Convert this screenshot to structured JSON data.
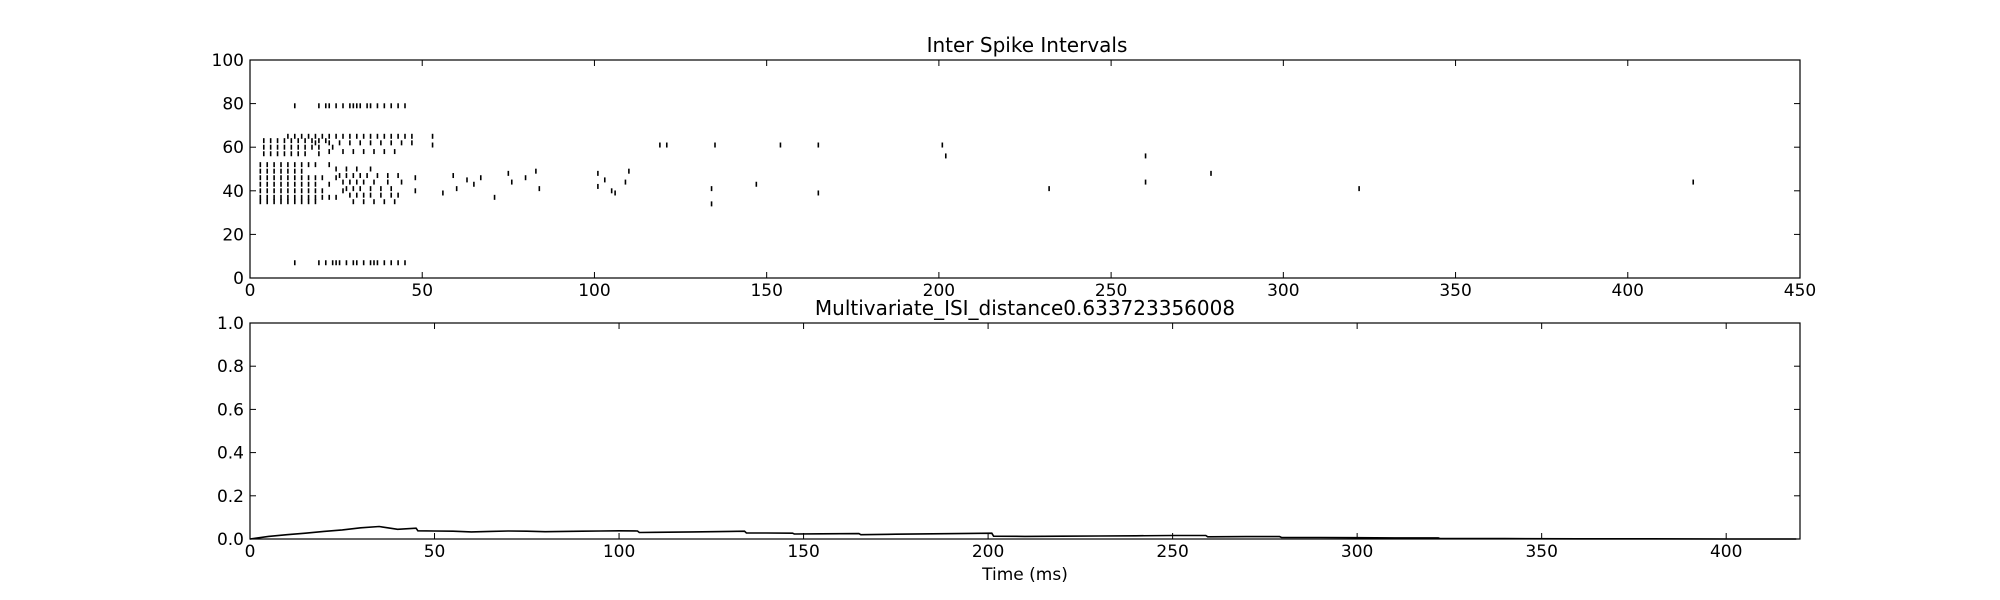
{
  "chart_data": [
    {
      "type": "scatter",
      "title": "Inter Spike Intervals",
      "xlabel": "",
      "ylabel": "",
      "xlim": [
        0,
        450
      ],
      "ylim": [
        0,
        100
      ],
      "xticks": [
        "0",
        "50",
        "100",
        "150",
        "200",
        "250",
        "300",
        "350",
        "400",
        "450"
      ],
      "yticks": [
        "0",
        "20",
        "40",
        "60",
        "80",
        "100"
      ],
      "grid": false,
      "marker": "vertical tick",
      "series": [
        {
          "points": [
            [
              13,
              7
            ],
            [
              20,
              7
            ],
            [
              22,
              7
            ],
            [
              24,
              7
            ],
            [
              25,
              7
            ],
            [
              26,
              7
            ],
            [
              28,
              7
            ],
            [
              30,
              7
            ],
            [
              31,
              7
            ],
            [
              33,
              7
            ],
            [
              35,
              7
            ],
            [
              36,
              7
            ],
            [
              37,
              7
            ],
            [
              39,
              7
            ],
            [
              41,
              7
            ],
            [
              43,
              7
            ],
            [
              45,
              7
            ],
            [
              13,
              79
            ],
            [
              20,
              79
            ],
            [
              22,
              79
            ],
            [
              23,
              79
            ],
            [
              25,
              79
            ],
            [
              27,
              79
            ],
            [
              29,
              79
            ],
            [
              30,
              79
            ],
            [
              31,
              79
            ],
            [
              32,
              79
            ],
            [
              34,
              79
            ],
            [
              35,
              79
            ],
            [
              37,
              79
            ],
            [
              39,
              79
            ],
            [
              41,
              79
            ],
            [
              43,
              79
            ],
            [
              45,
              79
            ],
            [
              4,
              63
            ],
            [
              6,
              63
            ],
            [
              8,
              63
            ],
            [
              10,
              63
            ],
            [
              12,
              63
            ],
            [
              14,
              63
            ],
            [
              16,
              63
            ],
            [
              18,
              63
            ],
            [
              20,
              63
            ],
            [
              22,
              63
            ],
            [
              4,
              60
            ],
            [
              6,
              60
            ],
            [
              8,
              60
            ],
            [
              10,
              60
            ],
            [
              12,
              60
            ],
            [
              14,
              60
            ],
            [
              16,
              60
            ],
            [
              18,
              60
            ],
            [
              20,
              60
            ],
            [
              24,
              60
            ],
            [
              4,
              57
            ],
            [
              6,
              57
            ],
            [
              8,
              57
            ],
            [
              10,
              57
            ],
            [
              12,
              57
            ],
            [
              14,
              57
            ],
            [
              16,
              57
            ],
            [
              20,
              57
            ],
            [
              3,
              52
            ],
            [
              5,
              52
            ],
            [
              7,
              52
            ],
            [
              9,
              52
            ],
            [
              11,
              52
            ],
            [
              13,
              52
            ],
            [
              15,
              52
            ],
            [
              17,
              52
            ],
            [
              19,
              52
            ],
            [
              23,
              52
            ],
            [
              3,
              49
            ],
            [
              5,
              49
            ],
            [
              7,
              49
            ],
            [
              9,
              49
            ],
            [
              11,
              49
            ],
            [
              13,
              49
            ],
            [
              15,
              49
            ],
            [
              3,
              46
            ],
            [
              5,
              46
            ],
            [
              7,
              46
            ],
            [
              9,
              46
            ],
            [
              11,
              46
            ],
            [
              13,
              46
            ],
            [
              15,
              46
            ],
            [
              17,
              46
            ],
            [
              19,
              46
            ],
            [
              21,
              46
            ],
            [
              25,
              46
            ],
            [
              3,
              43
            ],
            [
              5,
              43
            ],
            [
              7,
              43
            ],
            [
              9,
              43
            ],
            [
              11,
              43
            ],
            [
              13,
              43
            ],
            [
              15,
              43
            ],
            [
              17,
              43
            ],
            [
              19,
              43
            ],
            [
              23,
              43
            ],
            [
              3,
              40
            ],
            [
              5,
              40
            ],
            [
              7,
              40
            ],
            [
              9,
              40
            ],
            [
              11,
              40
            ],
            [
              13,
              40
            ],
            [
              15,
              40
            ],
            [
              17,
              40
            ],
            [
              19,
              40
            ],
            [
              21,
              40
            ],
            [
              27,
              40
            ],
            [
              3,
              37
            ],
            [
              5,
              37
            ],
            [
              7,
              37
            ],
            [
              9,
              37
            ],
            [
              11,
              37
            ],
            [
              13,
              37
            ],
            [
              15,
              37
            ],
            [
              17,
              37
            ],
            [
              19,
              37
            ],
            [
              21,
              37
            ],
            [
              23,
              37
            ],
            [
              25,
              37
            ],
            [
              3,
              35
            ],
            [
              5,
              35
            ],
            [
              7,
              35
            ],
            [
              9,
              35
            ],
            [
              11,
              35
            ],
            [
              13,
              35
            ],
            [
              15,
              35
            ],
            [
              17,
              35
            ],
            [
              19,
              35
            ],
            [
              11,
              65
            ],
            [
              13,
              65
            ],
            [
              15,
              65
            ],
            [
              17,
              65
            ],
            [
              19,
              65
            ],
            [
              21,
              65
            ],
            [
              23,
              65
            ],
            [
              25,
              65
            ],
            [
              27,
              65
            ],
            [
              29,
              65
            ],
            [
              31,
              65
            ],
            [
              33,
              65
            ],
            [
              35,
              65
            ],
            [
              37,
              65
            ],
            [
              39,
              65
            ],
            [
              41,
              65
            ],
            [
              43,
              65
            ],
            [
              45,
              65
            ],
            [
              47,
              65
            ],
            [
              53,
              65
            ],
            [
              19,
              62
            ],
            [
              23,
              62
            ],
            [
              26,
              62
            ],
            [
              29,
              62
            ],
            [
              32,
              62
            ],
            [
              35,
              62
            ],
            [
              38,
              62
            ],
            [
              41,
              62
            ],
            [
              44,
              62
            ],
            [
              47,
              62
            ],
            [
              53,
              61
            ],
            [
              23,
              58
            ],
            [
              27,
              58
            ],
            [
              30,
              58
            ],
            [
              33,
              58
            ],
            [
              36,
              58
            ],
            [
              39,
              58
            ],
            [
              42,
              58
            ],
            [
              25,
              50
            ],
            [
              28,
              50
            ],
            [
              31,
              50
            ],
            [
              35,
              50
            ],
            [
              26,
              47
            ],
            [
              28,
              47
            ],
            [
              30,
              47
            ],
            [
              32,
              47
            ],
            [
              34,
              47
            ],
            [
              37,
              47
            ],
            [
              40,
              47
            ],
            [
              43,
              47
            ],
            [
              48,
              46
            ],
            [
              27,
              44
            ],
            [
              29,
              44
            ],
            [
              31,
              44
            ],
            [
              33,
              44
            ],
            [
              36,
              44
            ],
            [
              40,
              44
            ],
            [
              44,
              44
            ],
            [
              28,
              41
            ],
            [
              30,
              41
            ],
            [
              32,
              41
            ],
            [
              35,
              41
            ],
            [
              38,
              41
            ],
            [
              41,
              41
            ],
            [
              48,
              40
            ],
            [
              29,
              38
            ],
            [
              31,
              38
            ],
            [
              33,
              38
            ],
            [
              35,
              38
            ],
            [
              38,
              38
            ],
            [
              41,
              38
            ],
            [
              43,
              38
            ],
            [
              30,
              35
            ],
            [
              33,
              35
            ],
            [
              36,
              35
            ],
            [
              39,
              35
            ],
            [
              42,
              35
            ],
            [
              56,
              39
            ],
            [
              59,
              47
            ],
            [
              60,
              41
            ],
            [
              63,
              45
            ],
            [
              65,
              43
            ],
            [
              67,
              46
            ],
            [
              71,
              37
            ],
            [
              75,
              48
            ],
            [
              76,
              44
            ],
            [
              80,
              46
            ],
            [
              83,
              49
            ],
            [
              84,
              41
            ],
            [
              101,
              48
            ],
            [
              101,
              42
            ],
            [
              103,
              45
            ],
            [
              105,
              40
            ],
            [
              106,
              39
            ],
            [
              109,
              44
            ],
            [
              110,
              49
            ],
            [
              119,
              61
            ],
            [
              121,
              61
            ],
            [
              135,
              61
            ],
            [
              154,
              61
            ],
            [
              165,
              61
            ],
            [
              201,
              61
            ],
            [
              202,
              56
            ],
            [
              260,
              56
            ],
            [
              134,
              41
            ],
            [
              134,
              34
            ],
            [
              147,
              43
            ],
            [
              165,
              39
            ],
            [
              232,
              41
            ],
            [
              260,
              44
            ],
            [
              279,
              48
            ],
            [
              322,
              41
            ],
            [
              419,
              44
            ]
          ]
        }
      ]
    },
    {
      "type": "line",
      "title": "Multivariate_ISI_distance0.633723356008",
      "xlabel": "Time (ms)",
      "ylabel": "",
      "xlim": [
        0,
        420
      ],
      "ylim": [
        0,
        1.0
      ],
      "xticks": [
        "0",
        "50",
        "100",
        "150",
        "200",
        "250",
        "300",
        "350",
        "400"
      ],
      "yticks": [
        "0.0",
        "0.2",
        "0.4",
        "0.6",
        "0.8",
        "1.0"
      ],
      "grid": false,
      "series": [
        {
          "x": [
            0,
            5,
            10,
            15,
            20,
            25,
            30,
            35,
            38,
            40,
            45,
            45.5,
            50,
            55,
            60,
            65,
            70,
            75,
            80,
            85,
            90,
            95,
            100,
            105,
            105.5,
            110,
            120,
            130,
            134,
            134.5,
            140,
            147,
            147.5,
            155,
            165,
            165.5,
            175,
            185,
            195,
            201,
            201.5,
            210,
            220,
            230,
            240,
            250,
            259,
            259.5,
            270,
            279,
            279.5,
            290,
            300,
            310,
            322,
            322.5,
            340,
            360,
            380,
            400,
            419
          ],
          "y": [
            0.0,
            0.012,
            0.02,
            0.027,
            0.035,
            0.042,
            0.052,
            0.058,
            0.05,
            0.045,
            0.05,
            0.038,
            0.037,
            0.036,
            0.033,
            0.035,
            0.037,
            0.036,
            0.034,
            0.035,
            0.036,
            0.037,
            0.038,
            0.037,
            0.03,
            0.031,
            0.033,
            0.035,
            0.036,
            0.028,
            0.028,
            0.027,
            0.023,
            0.024,
            0.025,
            0.02,
            0.022,
            0.024,
            0.026,
            0.027,
            0.013,
            0.012,
            0.013,
            0.014,
            0.015,
            0.016,
            0.016,
            0.01,
            0.011,
            0.011,
            0.007,
            0.007,
            0.006,
            0.005,
            0.005,
            0.002,
            0.002,
            0.001,
            0.001,
            0.0,
            0.0
          ]
        }
      ]
    }
  ]
}
